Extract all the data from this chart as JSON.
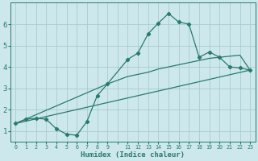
{
  "xlabel": "Humidex (Indice chaleur)",
  "bg_color": "#cce8ec",
  "grid_color": "#aacccc",
  "line_color": "#2a7a6e",
  "x_labels": [
    "0",
    "1",
    "2",
    "3",
    "4",
    "5",
    "6",
    "7",
    "8",
    "9",
    "",
    "11",
    "12",
    "13",
    "14",
    "15",
    "16",
    "17",
    "18",
    "19",
    "20",
    "21",
    "22",
    "23"
  ],
  "y_ticks": [
    1,
    2,
    3,
    4,
    5,
    6
  ],
  "ylim": [
    0.5,
    7.0
  ],
  "curve1_xi": [
    0,
    1,
    2,
    3,
    4,
    5,
    6,
    7,
    8,
    9,
    11,
    12,
    13,
    14,
    15,
    16,
    17,
    18,
    19,
    20,
    21,
    22,
    23
  ],
  "curve1_y": [
    1.35,
    1.55,
    1.6,
    1.55,
    1.1,
    0.85,
    0.8,
    1.45,
    2.65,
    3.2,
    4.35,
    4.65,
    5.55,
    6.05,
    6.5,
    6.1,
    6.0,
    4.45,
    4.7,
    4.45,
    4.0,
    3.95,
    3.85
  ],
  "curve2_xi": [
    0,
    23
  ],
  "curve2_y": [
    1.35,
    3.85
  ],
  "curve3_xi": [
    0,
    9,
    11,
    13,
    14,
    15,
    16,
    17,
    19,
    20,
    21,
    22,
    23
  ],
  "curve3_y": [
    1.35,
    3.2,
    3.55,
    3.75,
    3.9,
    4.0,
    4.1,
    4.2,
    4.4,
    4.45,
    4.5,
    4.55,
    3.85
  ]
}
